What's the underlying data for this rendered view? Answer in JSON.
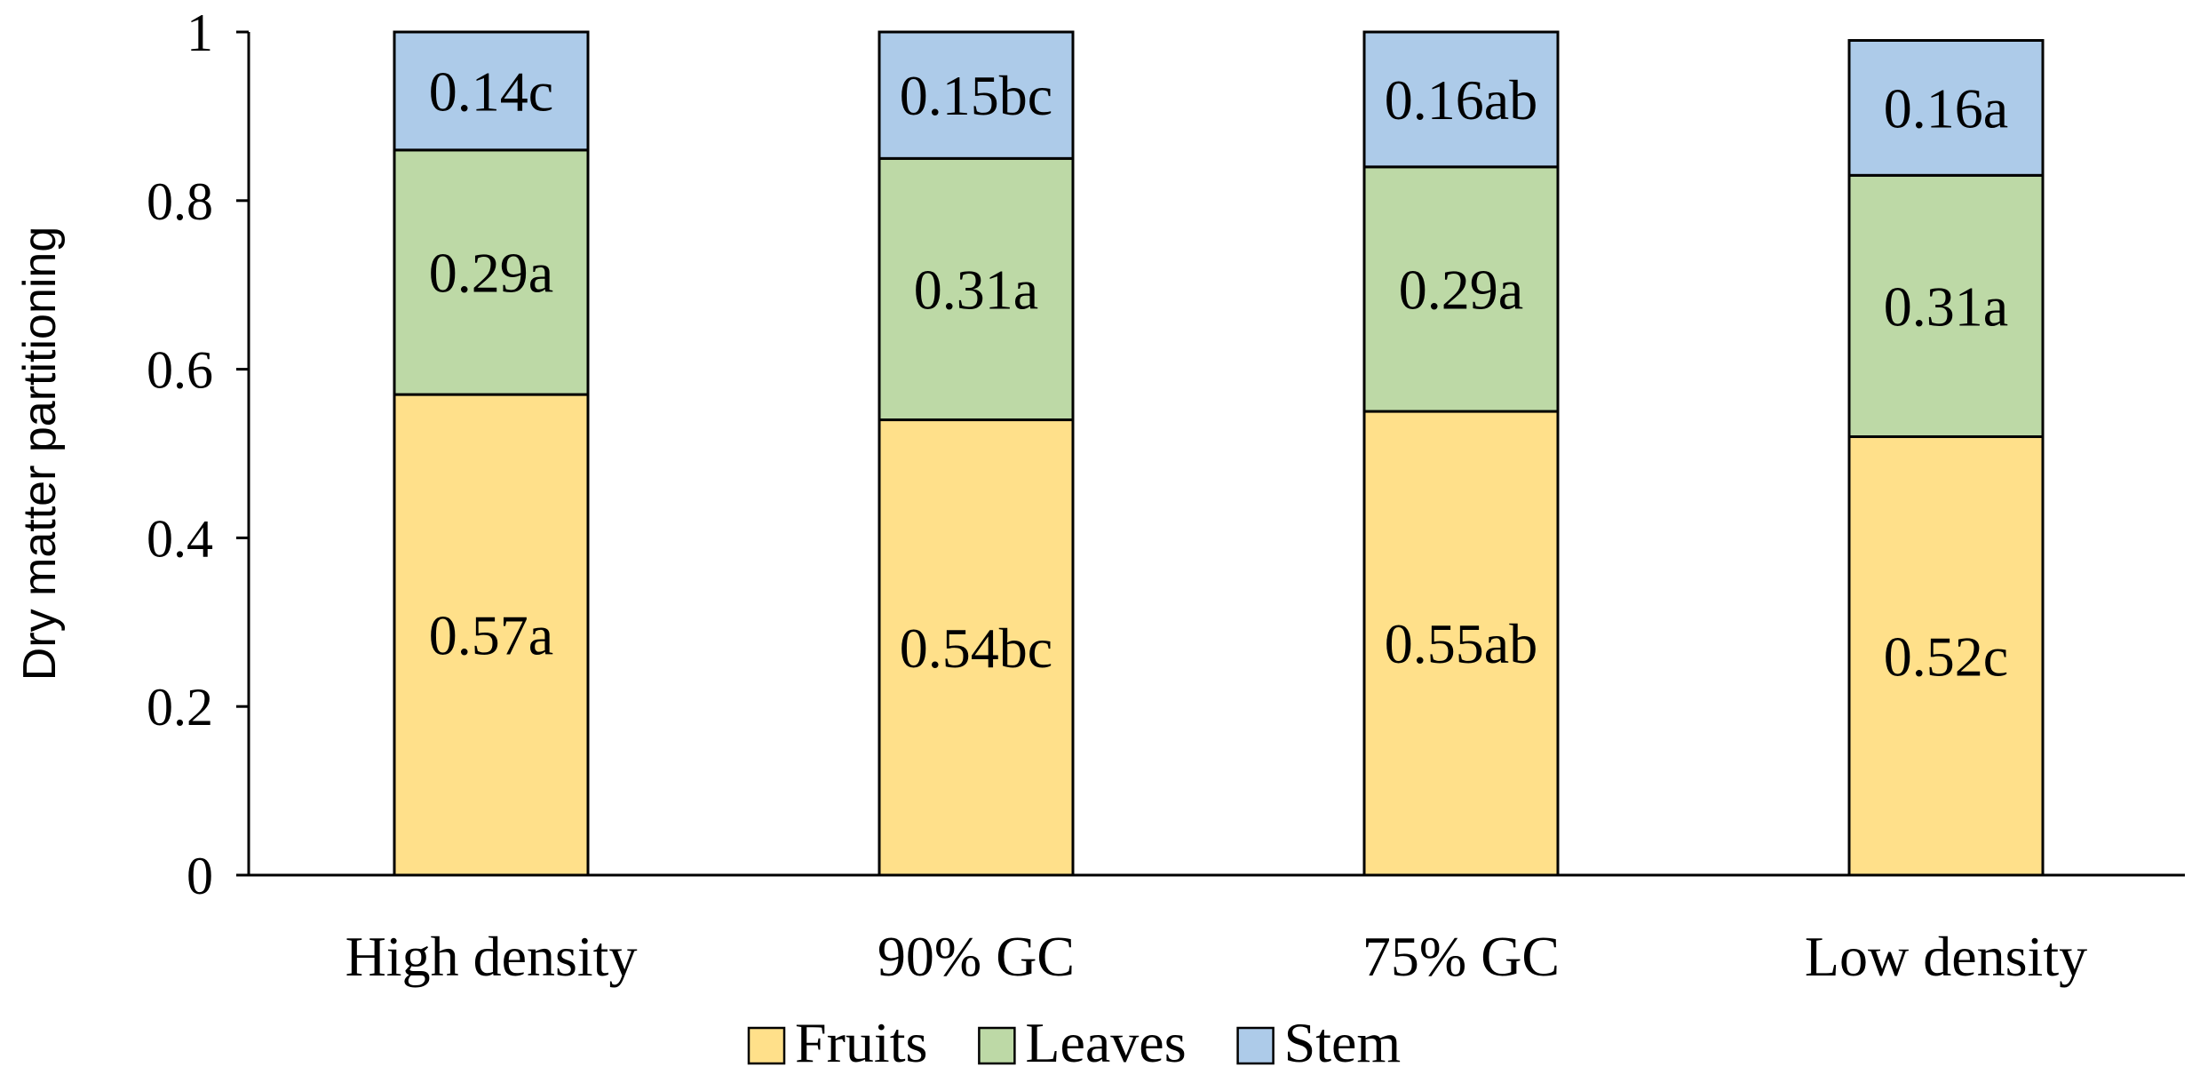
{
  "chart_data": {
    "type": "bar",
    "stacked": true,
    "title": "",
    "xlabel": "",
    "ylabel": "Dry matter partitioning",
    "ylim": [
      0,
      1
    ],
    "yticks": [
      0,
      0.2,
      0.4,
      0.6,
      0.8,
      1
    ],
    "ytick_labels": [
      "0",
      "0.2",
      "0.4",
      "0.6",
      "0.8",
      "1"
    ],
    "grid": false,
    "legend_position": "bottom",
    "categories": [
      "High density",
      "90% GC",
      "75% GC",
      "Low density"
    ],
    "series": [
      {
        "name": "Fruits",
        "color": "#FFE08A",
        "values": [
          0.57,
          0.54,
          0.55,
          0.52
        ],
        "labels": [
          "0.57a",
          "0.54bc",
          "0.55ab",
          "0.52c"
        ]
      },
      {
        "name": "Leaves",
        "color": "#BDD9A6",
        "values": [
          0.29,
          0.31,
          0.29,
          0.31
        ],
        "labels": [
          "0.29a",
          "0.31a",
          "0.29a",
          "0.31a"
        ]
      },
      {
        "name": "Stem",
        "color": "#ADCBE9",
        "values": [
          0.14,
          0.15,
          0.16,
          0.16
        ],
        "labels": [
          "0.14c",
          "0.15bc",
          "0.16ab",
          "0.16a"
        ]
      }
    ]
  }
}
